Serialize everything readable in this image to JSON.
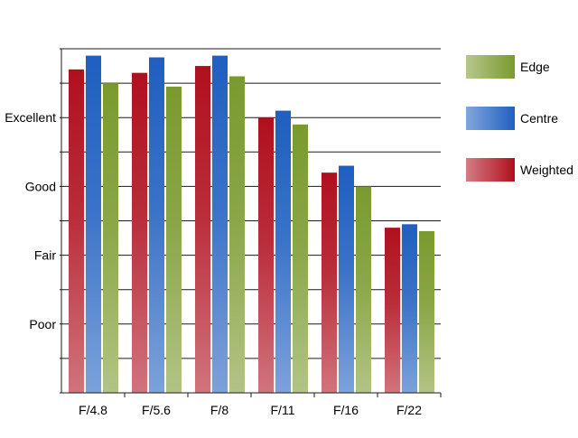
{
  "chart_data": {
    "type": "bar",
    "categories": [
      "F/4.8",
      "F/5.6",
      "F/8",
      "F/11",
      "F/16",
      "F/22"
    ],
    "series": [
      {
        "name": "Weighted",
        "values": [
          9.4,
          9.3,
          9.5,
          8.0,
          6.4,
          4.8
        ],
        "color": "#b0101e"
      },
      {
        "name": "Centre",
        "values": [
          9.8,
          9.75,
          9.8,
          8.2,
          6.6,
          4.9
        ],
        "color": "#1f5fc0"
      },
      {
        "name": "Edge",
        "values": [
          9.0,
          8.9,
          9.2,
          7.8,
          6.0,
          4.7
        ],
        "color": "#7a9a2e"
      }
    ],
    "y_tick_labels": [
      {
        "value": 2,
        "label": "Poor"
      },
      {
        "value": 4,
        "label": "Fair"
      },
      {
        "value": 6,
        "label": "Good"
      },
      {
        "value": 8,
        "label": "Excellent"
      }
    ],
    "ylim": [
      0,
      10
    ],
    "y_gridlines": [
      1,
      2,
      3,
      4,
      5,
      6,
      7,
      8,
      9,
      10
    ],
    "grid": true,
    "legend": {
      "placement": "right",
      "order": [
        "Edge",
        "Centre",
        "Weighted"
      ]
    }
  }
}
